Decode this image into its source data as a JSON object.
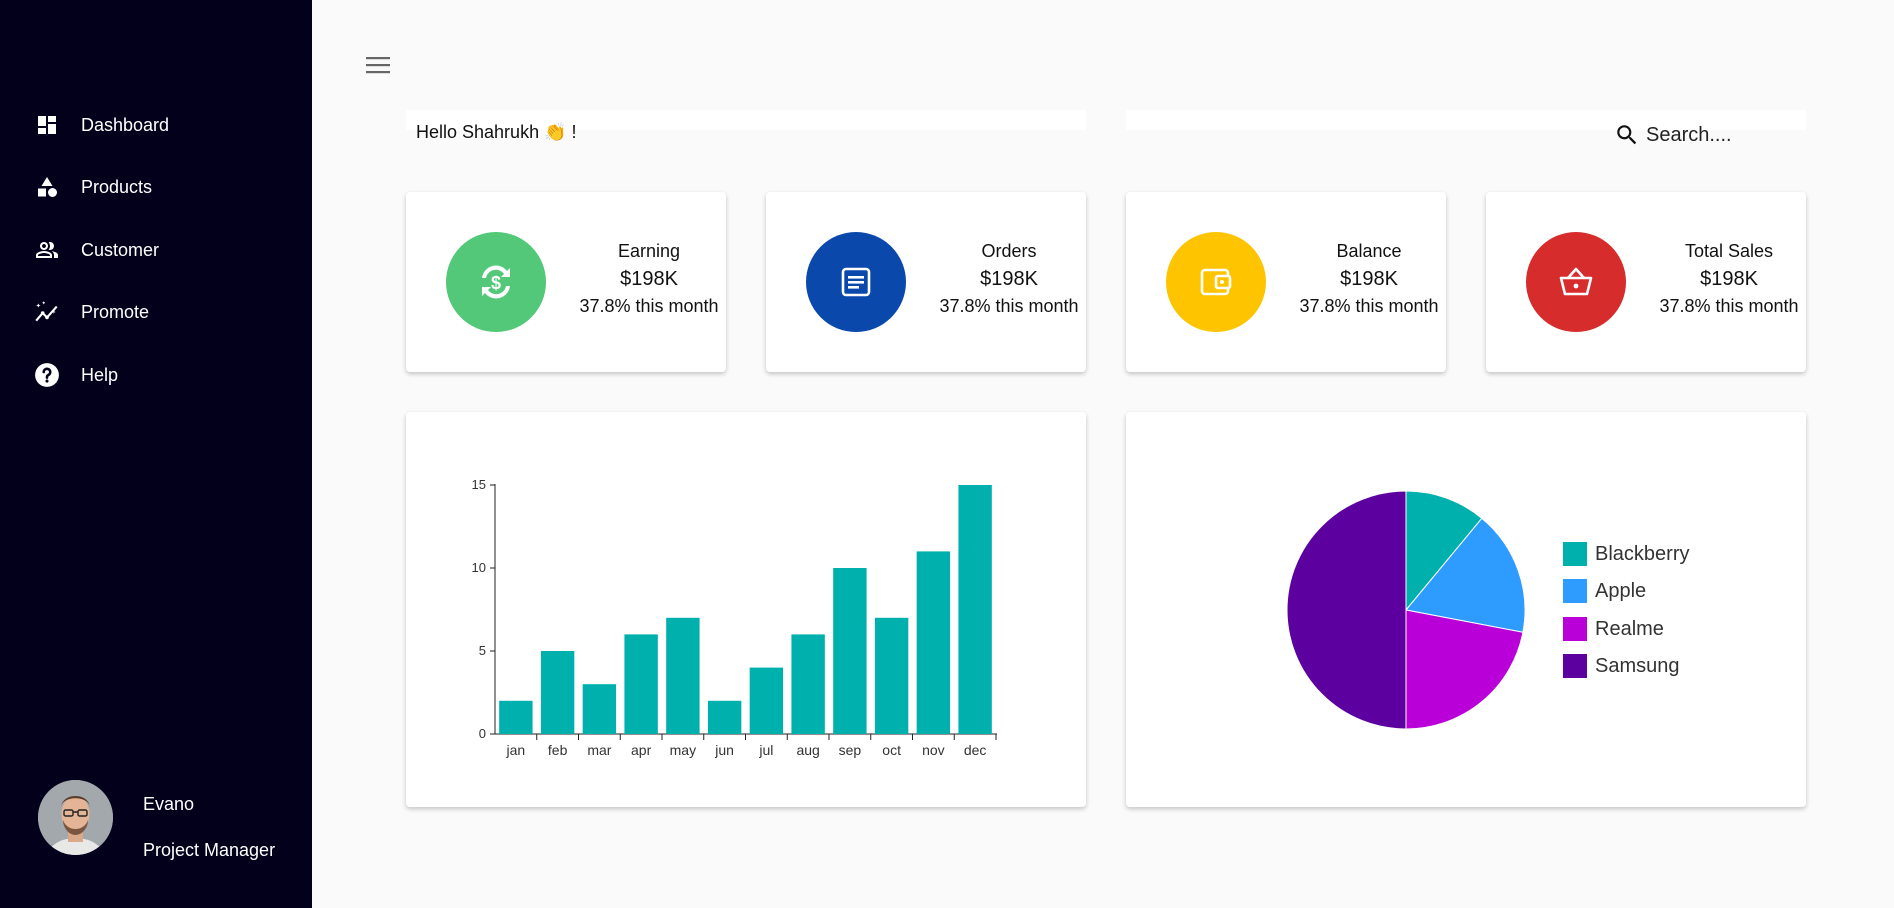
{
  "sidebar": {
    "items": [
      {
        "label": "Dashboard",
        "icon": "dashboard-icon"
      },
      {
        "label": "Products",
        "icon": "products-icon"
      },
      {
        "label": "Customer",
        "icon": "customer-icon"
      },
      {
        "label": "Promote",
        "icon": "promote-icon"
      },
      {
        "label": "Help",
        "icon": "help-icon"
      }
    ],
    "user": {
      "name": "Evano",
      "role": "Project Manager"
    }
  },
  "header": {
    "greeting": "Hello Shahrukh 👏 !",
    "search_placeholder": "Search...."
  },
  "stats": [
    {
      "title": "Earning",
      "value": "$198K",
      "change": "37.8% this month",
      "color": "#52c878",
      "icon": "dollar-exchange-icon"
    },
    {
      "title": "Orders",
      "value": "$198K",
      "change": "37.8% this month",
      "color": "#0a49ab",
      "icon": "document-icon"
    },
    {
      "title": "Balance",
      "value": "$198K",
      "change": "37.8% this month",
      "color": "#fec400",
      "icon": "wallet-icon"
    },
    {
      "title": "Total Sales",
      "value": "$198K",
      "change": "37.8% this month",
      "color": "#d62c2c",
      "icon": "basket-icon"
    }
  ],
  "chart_data": [
    {
      "type": "bar",
      "categories": [
        "jan",
        "feb",
        "mar",
        "apr",
        "may",
        "jun",
        "jul",
        "aug",
        "sep",
        "oct",
        "nov",
        "dec"
      ],
      "values": [
        2,
        5,
        3,
        6,
        7,
        2,
        4,
        6,
        10,
        7,
        11,
        15
      ],
      "ylim": [
        0,
        15
      ],
      "yticks": [
        0,
        5,
        10,
        15
      ],
      "color": "#00b0ad",
      "grid": false
    },
    {
      "type": "pie",
      "labels": [
        "Blackberry",
        "Apple",
        "Realme",
        "Samsung"
      ],
      "values": [
        11,
        17,
        22,
        50
      ],
      "colors": [
        "#00b0ad",
        "#2d9bff",
        "#b900d8",
        "#5c009f"
      ],
      "legend": "right"
    }
  ]
}
